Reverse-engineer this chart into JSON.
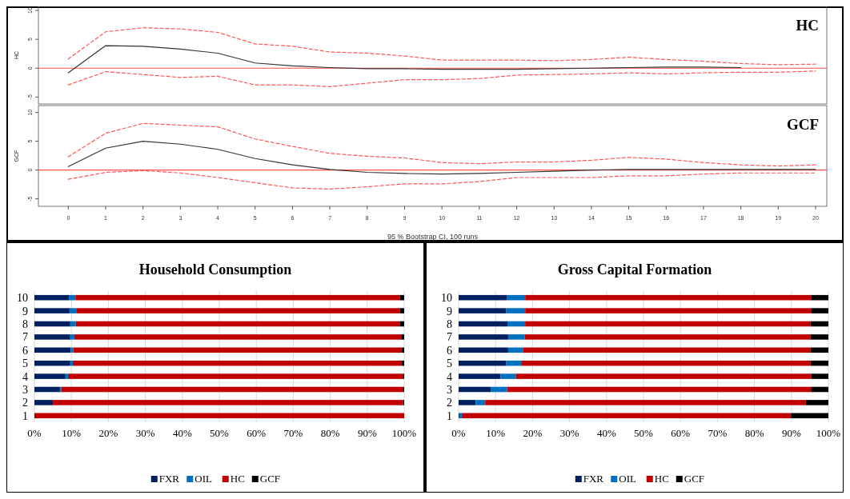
{
  "chart_data": [
    {
      "type": "line",
      "title": "HC",
      "ylabel": "HC",
      "x": [
        0,
        1,
        2,
        3,
        4,
        5,
        6,
        7,
        8,
        9,
        10,
        11,
        12,
        13,
        14,
        15,
        16,
        17,
        18,
        19,
        20
      ],
      "xlim": [
        -0.8,
        20.3
      ],
      "ylim": [
        -6.2,
        10.7
      ],
      "yticks": [
        -5,
        0,
        5,
        10
      ],
      "tick_labels": "y",
      "grid": false,
      "marker": "none",
      "line_style": "solid",
      "ref_lines": [
        {
          "axis": "y",
          "value": 0,
          "color": "#ff4d4d"
        }
      ],
      "series": [
        {
          "color": "#ff5555",
          "line_style": "dashed",
          "values": [
            1.6,
            6.3,
            7.0,
            6.8,
            6.2,
            4.2,
            3.8,
            2.8,
            2.6,
            2.1,
            1.4,
            1.4,
            1.4,
            1.3,
            1.5,
            1.9,
            1.5,
            1.2,
            0.8,
            0.6,
            0.7
          ]
        },
        {
          "color": "#ff5555",
          "line_style": "dashed",
          "values": [
            -2.9,
            -0.6,
            -1.1,
            -1.6,
            -1.4,
            -2.9,
            -2.9,
            -3.2,
            -2.6,
            -2.0,
            -2.0,
            -1.8,
            -1.2,
            -1.1,
            -1.0,
            -0.8,
            -1.0,
            -0.8,
            -0.7,
            -0.7,
            -0.5
          ]
        },
        {
          "color": "#333333",
          "values": [
            -0.8,
            3.9,
            3.8,
            3.3,
            2.6,
            0.9,
            0.4,
            0.1,
            -0.1,
            -0.1,
            -0.2,
            -0.2,
            -0.2,
            -0.1,
            0.0,
            0.1,
            0.2,
            0.2,
            0.1,
            null,
            null
          ]
        }
      ]
    },
    {
      "type": "line",
      "title": "GCF",
      "ylabel": "GCF",
      "xlabel": "95 % Bootstrap CI,  100 runs",
      "x": [
        0,
        1,
        2,
        3,
        4,
        5,
        6,
        7,
        8,
        9,
        10,
        11,
        12,
        13,
        14,
        15,
        16,
        17,
        18,
        19,
        20
      ],
      "xlim": [
        -0.8,
        20.3
      ],
      "xticks": [
        0,
        1,
        2,
        3,
        4,
        5,
        6,
        7,
        8,
        9,
        10,
        11,
        12,
        13,
        14,
        15,
        16,
        17,
        18,
        19,
        20
      ],
      "ylim": [
        -6.3,
        11.2
      ],
      "yticks": [
        -5,
        0,
        5,
        10
      ],
      "grid": false,
      "marker": "none",
      "line_style": "solid",
      "ref_lines": [
        {
          "axis": "y",
          "value": 0,
          "color": "#ff4d4d"
        }
      ],
      "series": [
        {
          "color": "#ff5555",
          "line_style": "dashed",
          "values": [
            2.3,
            6.4,
            8.1,
            7.8,
            7.5,
            5.4,
            4.1,
            2.9,
            2.4,
            2.1,
            1.3,
            1.1,
            1.4,
            1.4,
            1.7,
            2.2,
            1.9,
            1.3,
            0.9,
            0.7,
            0.9
          ]
        },
        {
          "color": "#ff5555",
          "line_style": "dashed",
          "values": [
            -1.6,
            -0.4,
            -0.1,
            -0.5,
            -1.3,
            -2.2,
            -3.1,
            -3.3,
            -2.9,
            -2.4,
            -2.4,
            -2.0,
            -1.3,
            -1.3,
            -1.3,
            -1.0,
            -1.0,
            -0.7,
            -0.5,
            -0.5,
            -0.5
          ]
        },
        {
          "color": "#333333",
          "values": [
            0.6,
            3.8,
            5.0,
            4.5,
            3.6,
            2.0,
            0.9,
            0.1,
            -0.4,
            -0.6,
            -0.7,
            -0.6,
            -0.4,
            -0.2,
            0.0,
            0.1,
            0.1,
            0.1,
            0.1,
            0.1,
            0.1
          ]
        }
      ]
    },
    {
      "type": "bar",
      "title": "Household Consumption",
      "orientation": "horizontal",
      "stacked": true,
      "categories": [
        "10",
        "9",
        "8",
        "7",
        "6",
        "5",
        "4",
        "3",
        "2",
        "1"
      ],
      "xlim": [
        0,
        100
      ],
      "xticks": [
        {
          "value": 0,
          "label": "0%"
        },
        {
          "value": 10,
          "label": "10%"
        },
        {
          "value": 20,
          "label": "20%"
        },
        {
          "value": 30,
          "label": "30%"
        },
        {
          "value": 40,
          "label": "40%"
        },
        {
          "value": 50,
          "label": "50%"
        },
        {
          "value": 60,
          "label": "60%"
        },
        {
          "value": 70,
          "label": "70%"
        },
        {
          "value": 80,
          "label": "80%"
        },
        {
          "value": 90,
          "label": "90%"
        },
        {
          "value": 100,
          "label": "100%"
        }
      ],
      "grid": "x",
      "legend": "bottom",
      "series": [
        {
          "name": "FXR",
          "color": "#002060",
          "values": [
            9.3,
            9.5,
            9.7,
            9.7,
            9.8,
            9.7,
            8.4,
            6.9,
            5.0,
            0.2
          ]
        },
        {
          "name": "OIL",
          "color": "#0070c0",
          "values": [
            1.8,
            1.8,
            1.5,
            1.1,
            0.7,
            0.7,
            0.7,
            0.4,
            0,
            0
          ]
        },
        {
          "name": "HC",
          "color": "#c00000",
          "values": [
            87.7,
            87.5,
            87.7,
            88.4,
            88.9,
            89.0,
            90.7,
            92.5,
            94.7,
            99.8
          ]
        },
        {
          "name": "GCF",
          "color": "#000000",
          "values": [
            1.2,
            1.2,
            1.1,
            0.8,
            0.6,
            0.6,
            0.2,
            0.2,
            0.3,
            0
          ]
        }
      ]
    },
    {
      "type": "bar",
      "title": "Gross Capital Formation",
      "orientation": "horizontal",
      "stacked": true,
      "categories": [
        "10",
        "9",
        "8",
        "7",
        "6",
        "5",
        "4",
        "3",
        "2",
        "1"
      ],
      "xlim": [
        0,
        100
      ],
      "xticks": [
        {
          "value": 0,
          "label": "0%"
        },
        {
          "value": 10,
          "label": "10%"
        },
        {
          "value": 20,
          "label": "20%"
        },
        {
          "value": 30,
          "label": "30%"
        },
        {
          "value": 40,
          "label": "40%"
        },
        {
          "value": 50,
          "label": "50%"
        },
        {
          "value": 60,
          "label": "60%"
        },
        {
          "value": 70,
          "label": "70%"
        },
        {
          "value": 80,
          "label": "80%"
        },
        {
          "value": 90,
          "label": "90%"
        },
        {
          "value": 100,
          "label": "100%"
        }
      ],
      "grid": "x",
      "legend": "bottom",
      "series": [
        {
          "name": "FXR",
          "color": "#002060",
          "values": [
            13.0,
            12.9,
            13.2,
            13.4,
            13.4,
            12.9,
            11.3,
            8.8,
            4.6,
            0.2
          ]
        },
        {
          "name": "OIL",
          "color": "#0070c0",
          "values": [
            5.0,
            5.1,
            4.8,
            4.5,
            4.0,
            4.2,
            4.2,
            4.3,
            2.6,
            0.7
          ]
        },
        {
          "name": "HC",
          "color": "#c00000",
          "values": [
            77.3,
            77.3,
            77.2,
            77.3,
            77.8,
            78.1,
            79.9,
            82.2,
            86.7,
            89.0
          ]
        },
        {
          "name": "GCF",
          "color": "#000000",
          "values": [
            4.7,
            4.7,
            4.8,
            4.8,
            4.8,
            4.8,
            4.6,
            4.7,
            6.1,
            10.1
          ]
        }
      ]
    }
  ]
}
